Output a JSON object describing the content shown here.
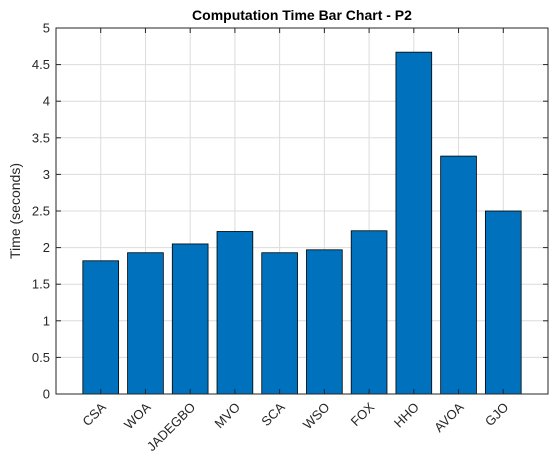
{
  "chart_data": {
    "type": "bar",
    "title": "Computation Time Bar Chart - P2",
    "xlabel": "",
    "ylabel": "Time (seconds)",
    "categories": [
      "CSA",
      "WOA",
      "JADEGBO",
      "MVO",
      "SCA",
      "WSO",
      "FOX",
      "HHO",
      "AVOA",
      "GJO"
    ],
    "values": [
      1.82,
      1.93,
      2.05,
      2.22,
      1.93,
      1.97,
      2.23,
      4.67,
      3.25,
      2.5
    ],
    "ylim": [
      0,
      5
    ],
    "yticks": [
      "0",
      "0.5",
      "1",
      "1.5",
      "2",
      "2.5",
      "3",
      "3.5",
      "4",
      "4.5",
      "5"
    ],
    "grid": true,
    "bar_color": "#0072BD"
  }
}
